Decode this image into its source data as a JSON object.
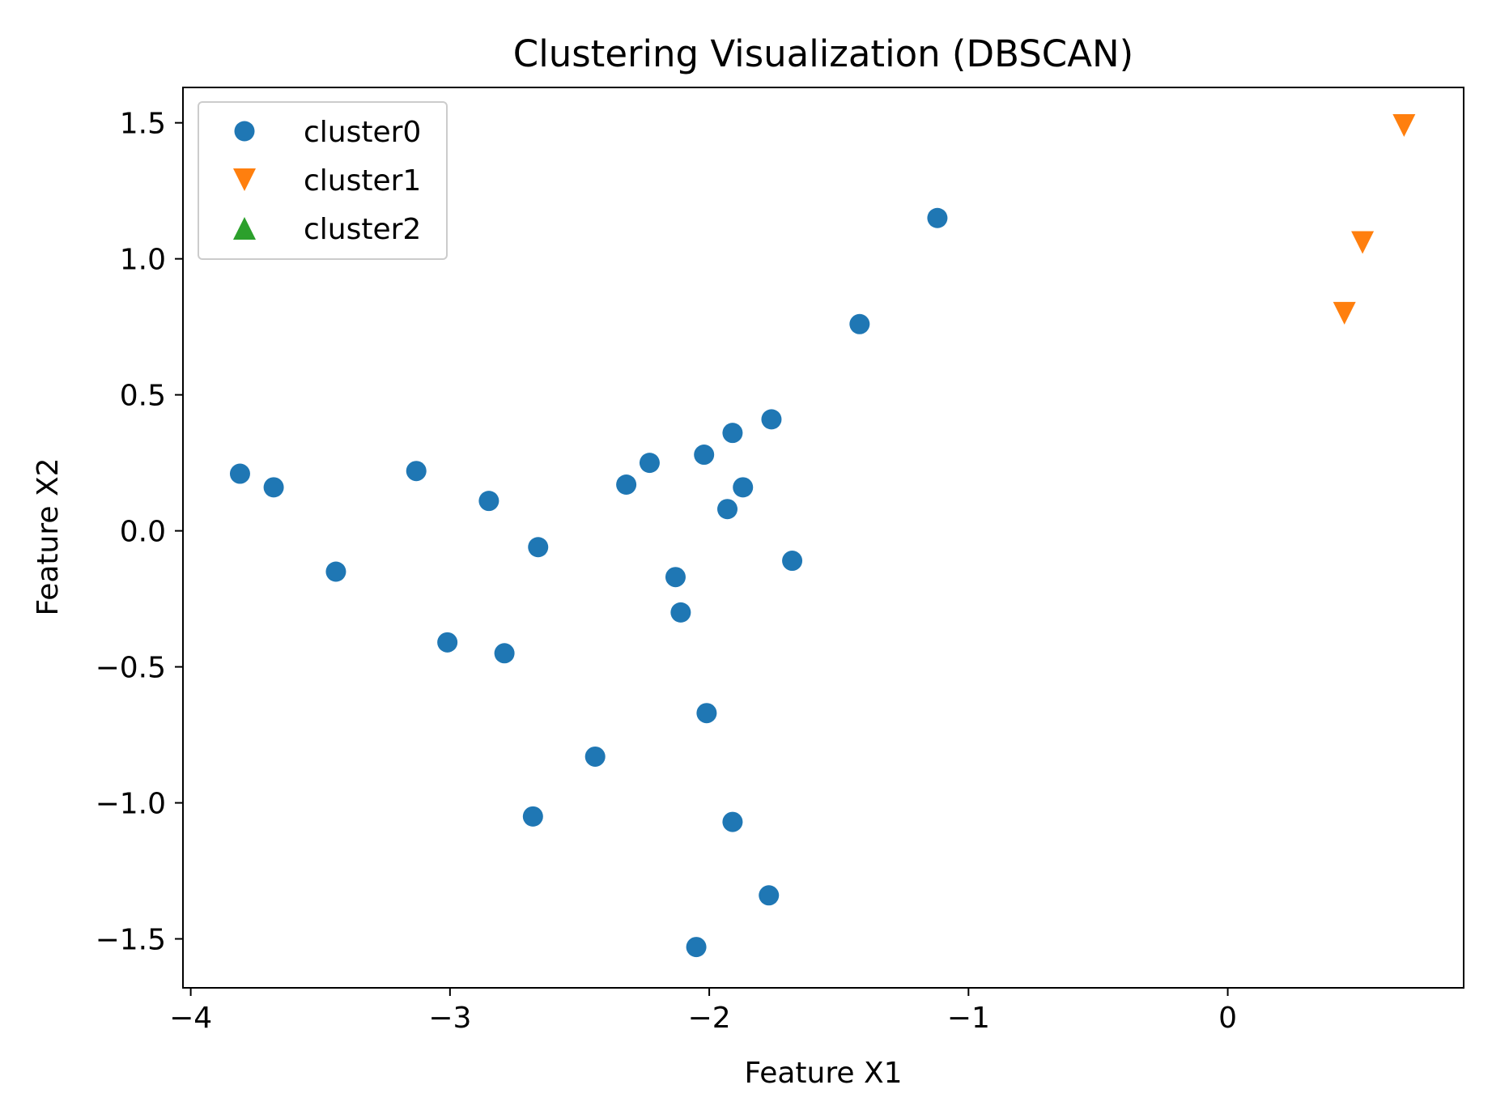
{
  "chart_data": {
    "type": "scatter",
    "title": "Clustering Visualization (DBSCAN)",
    "xlabel": "Feature X1",
    "ylabel": "Feature X2",
    "xlim": [
      -4.03,
      0.91
    ],
    "ylim": [
      -1.68,
      1.63
    ],
    "xticks": [
      {
        "value": -4,
        "label": "−4"
      },
      {
        "value": -3,
        "label": "−3"
      },
      {
        "value": -2,
        "label": "−2"
      },
      {
        "value": -1,
        "label": "−1"
      },
      {
        "value": 0,
        "label": "0"
      }
    ],
    "yticks": [
      {
        "value": 1.5,
        "label": "1.5"
      },
      {
        "value": 1.0,
        "label": "1.0"
      },
      {
        "value": 0.5,
        "label": "0.5"
      },
      {
        "value": 0.0,
        "label": "0.0"
      },
      {
        "value": -0.5,
        "label": "−0.5"
      },
      {
        "value": -1.0,
        "label": "−1.0"
      },
      {
        "value": -1.5,
        "label": "−1.5"
      }
    ],
    "grid": false,
    "legend_position": "upper-left",
    "series": [
      {
        "name": "cluster0",
        "marker": "circle",
        "color": "#1f77b4",
        "points": [
          {
            "x": -3.81,
            "y": 0.21
          },
          {
            "x": -3.68,
            "y": 0.16
          },
          {
            "x": -3.44,
            "y": -0.15
          },
          {
            "x": -3.13,
            "y": 0.22
          },
          {
            "x": -3.01,
            "y": -0.41
          },
          {
            "x": -2.85,
            "y": 0.11
          },
          {
            "x": -2.79,
            "y": -0.45
          },
          {
            "x": -2.66,
            "y": -0.06
          },
          {
            "x": -2.68,
            "y": -1.05
          },
          {
            "x": -2.44,
            "y": -0.83
          },
          {
            "x": -2.32,
            "y": 0.17
          },
          {
            "x": -2.23,
            "y": 0.25
          },
          {
            "x": -2.13,
            "y": -0.17
          },
          {
            "x": -2.11,
            "y": -0.3
          },
          {
            "x": -2.02,
            "y": 0.28
          },
          {
            "x": -2.01,
            "y": -0.67
          },
          {
            "x": -2.05,
            "y": -1.53
          },
          {
            "x": -1.93,
            "y": 0.08
          },
          {
            "x": -1.91,
            "y": 0.36
          },
          {
            "x": -1.91,
            "y": -1.07
          },
          {
            "x": -1.87,
            "y": 0.16
          },
          {
            "x": -1.76,
            "y": 0.41
          },
          {
            "x": -1.77,
            "y": -1.34
          },
          {
            "x": -1.68,
            "y": -0.11
          },
          {
            "x": -1.42,
            "y": 0.76
          },
          {
            "x": -1.12,
            "y": 1.15
          }
        ]
      },
      {
        "name": "cluster1",
        "marker": "triangle-down",
        "color": "#ff7f0e",
        "points": [
          {
            "x": 0.68,
            "y": 1.49
          },
          {
            "x": 0.52,
            "y": 1.06
          },
          {
            "x": 0.45,
            "y": 0.8
          }
        ]
      },
      {
        "name": "cluster2",
        "marker": "triangle-up",
        "color": "#2ca02c",
        "points": []
      }
    ]
  }
}
